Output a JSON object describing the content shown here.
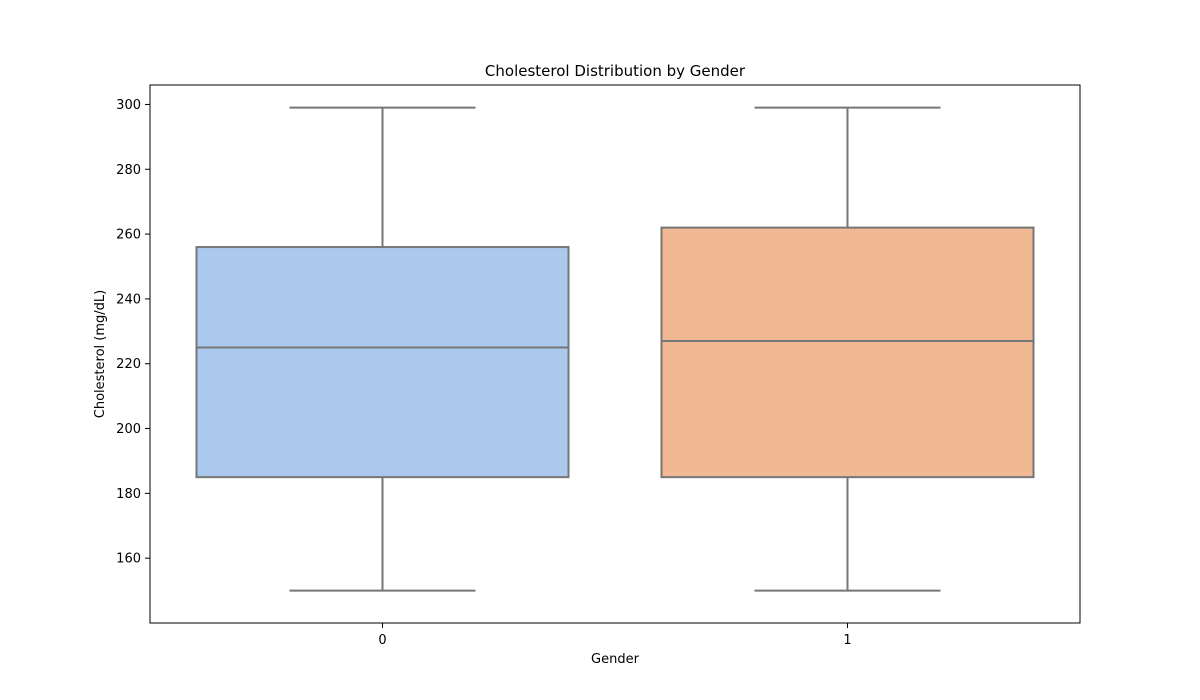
{
  "chart_data": {
    "type": "box",
    "title": "Cholesterol Distribution by Gender",
    "xlabel": "Gender",
    "ylabel": "Cholesterol (mg/dL)",
    "categories": [
      "0",
      "1"
    ],
    "ylim": [
      140,
      306
    ],
    "yticks": [
      160,
      180,
      200,
      220,
      240,
      260,
      280,
      300
    ],
    "grid": false,
    "legend": "none",
    "series": [
      {
        "category": "0",
        "color": "#abc9ed",
        "whisker_low": 150,
        "q1": 185,
        "median": 225,
        "q3": 256,
        "whisker_high": 299
      },
      {
        "category": "1",
        "color": "#f0b893",
        "whisker_low": 150,
        "q1": 185,
        "median": 227,
        "q3": 262,
        "whisker_high": 299
      }
    ],
    "line_color": "#767676"
  }
}
